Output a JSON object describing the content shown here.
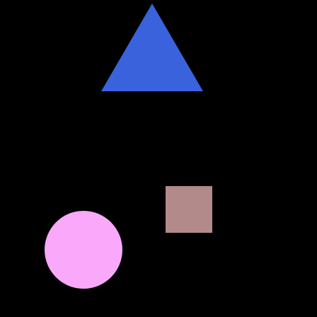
{
  "scene": {
    "background": "#000000",
    "shapes": [
      {
        "name": "triangle",
        "color": "#3a62dd"
      },
      {
        "name": "square",
        "color": "#b38a8a"
      },
      {
        "name": "circle",
        "color": "#f9a8fa"
      }
    ]
  }
}
